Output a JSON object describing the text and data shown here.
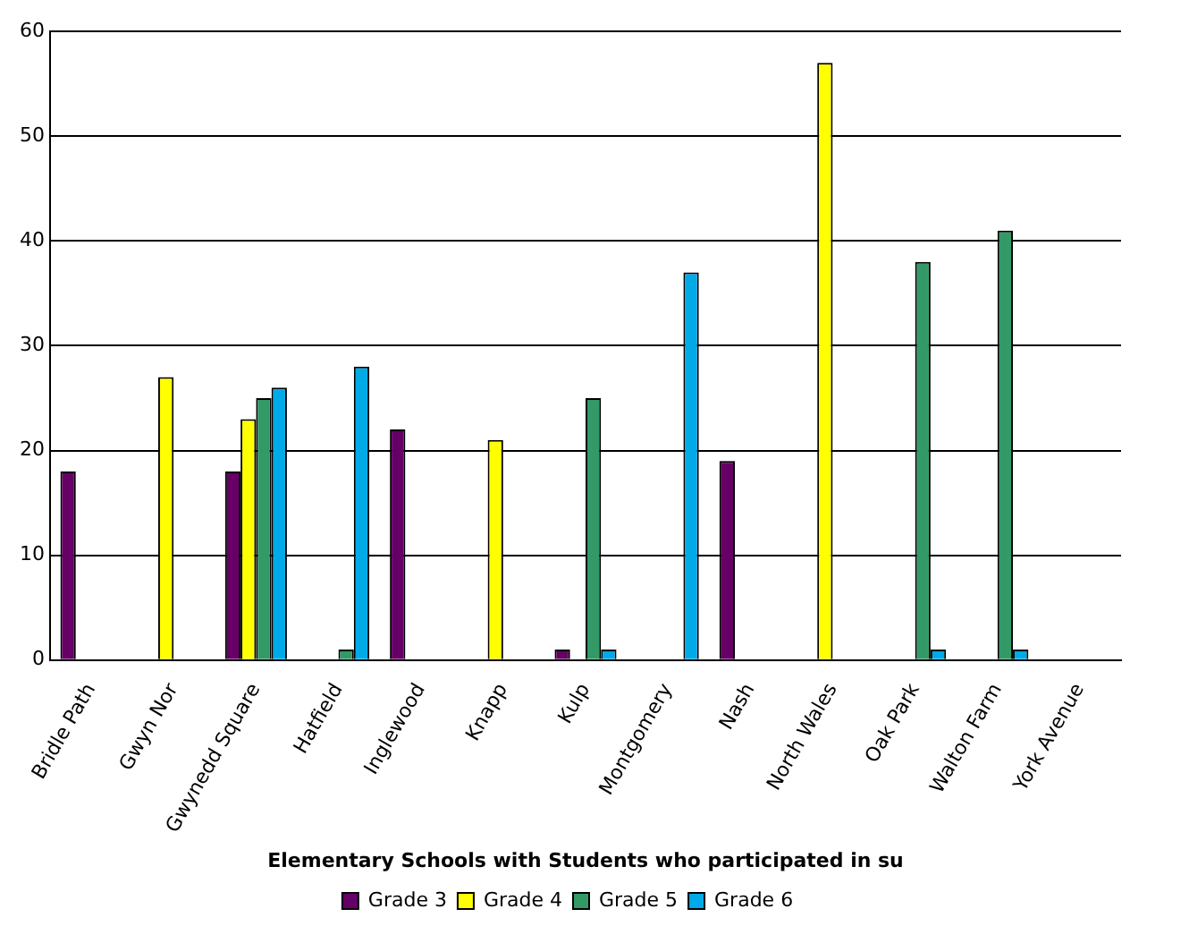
{
  "chart_data": {
    "type": "bar",
    "xlabel": "Elementary Schools with Students who participated in su",
    "categories": [
      "Bridle Path",
      "Gwyn Nor",
      "Gwynedd Square",
      "Hatfield",
      "Inglewood",
      "Knapp",
      "Kulp",
      "Montgomery",
      "Nash",
      "North Wales",
      "Oak Park",
      "Walton Farm",
      "York Avenue"
    ],
    "series": [
      {
        "name": "Grade 3",
        "color": "#660066",
        "values": [
          18,
          null,
          18,
          null,
          22,
          null,
          1,
          null,
          19,
          null,
          null,
          null,
          null
        ]
      },
      {
        "name": "Grade 4",
        "color": "#ffff00",
        "values": [
          null,
          27,
          23,
          null,
          null,
          21,
          null,
          null,
          null,
          57,
          null,
          null,
          null
        ]
      },
      {
        "name": "Grade 5",
        "color": "#339966",
        "values": [
          null,
          null,
          25,
          1,
          null,
          null,
          25,
          null,
          null,
          null,
          38,
          41,
          null
        ]
      },
      {
        "name": "Grade 6",
        "color": "#00aae6",
        "values": [
          null,
          null,
          26,
          28,
          null,
          null,
          1,
          37,
          null,
          null,
          1,
          1,
          null
        ]
      }
    ],
    "ylim": [
      0,
      60
    ],
    "yticks": [
      0,
      10,
      20,
      30,
      40,
      50,
      60
    ],
    "grid": "y",
    "legend": "bottom"
  }
}
